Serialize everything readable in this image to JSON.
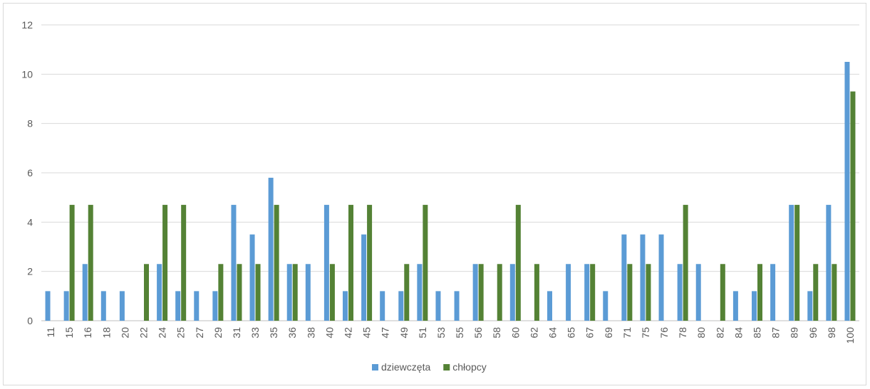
{
  "chart_data": {
    "type": "bar",
    "categories": [
      "11",
      "15",
      "16",
      "18",
      "20",
      "22",
      "24",
      "25",
      "27",
      "29",
      "31",
      "33",
      "35",
      "36",
      "38",
      "40",
      "42",
      "45",
      "47",
      "49",
      "51",
      "53",
      "55",
      "56",
      "58",
      "60",
      "62",
      "64",
      "65",
      "67",
      "69",
      "71",
      "75",
      "76",
      "78",
      "80",
      "82",
      "84",
      "85",
      "87",
      "89",
      "96",
      "98",
      "100"
    ],
    "series": [
      {
        "name": "dziewczęta",
        "color": "#5b9bd5",
        "values": [
          1.2,
          1.2,
          2.3,
          1.2,
          1.2,
          0,
          2.3,
          1.2,
          1.2,
          1.2,
          4.7,
          3.5,
          5.8,
          2.3,
          2.3,
          4.7,
          1.2,
          3.5,
          1.2,
          1.2,
          2.3,
          1.2,
          1.2,
          2.3,
          0,
          2.3,
          0,
          1.2,
          2.3,
          2.3,
          1.2,
          3.5,
          3.5,
          3.5,
          2.3,
          2.3,
          0,
          1.2,
          1.2,
          2.3,
          4.7,
          1.2,
          4.7,
          10.5
        ]
      },
      {
        "name": "chłopcy",
        "color": "#548235",
        "values": [
          0,
          4.7,
          4.7,
          0,
          0,
          2.3,
          4.7,
          4.7,
          0,
          2.3,
          2.3,
          2.3,
          4.7,
          2.3,
          0,
          2.3,
          4.7,
          4.7,
          0,
          2.3,
          4.7,
          0,
          0,
          2.3,
          2.3,
          4.7,
          2.3,
          0,
          0,
          2.3,
          0,
          2.3,
          2.3,
          0,
          4.7,
          0,
          2.3,
          0,
          2.3,
          0,
          4.7,
          2.3,
          2.3,
          9.3
        ]
      }
    ],
    "yticks": [
      "0",
      "2",
      "4",
      "6",
      "8",
      "10",
      "12"
    ],
    "ylim": [
      0,
      12
    ],
    "grid": true,
    "legend": "bottom",
    "title": "",
    "xlabel": "",
    "ylabel": ""
  }
}
